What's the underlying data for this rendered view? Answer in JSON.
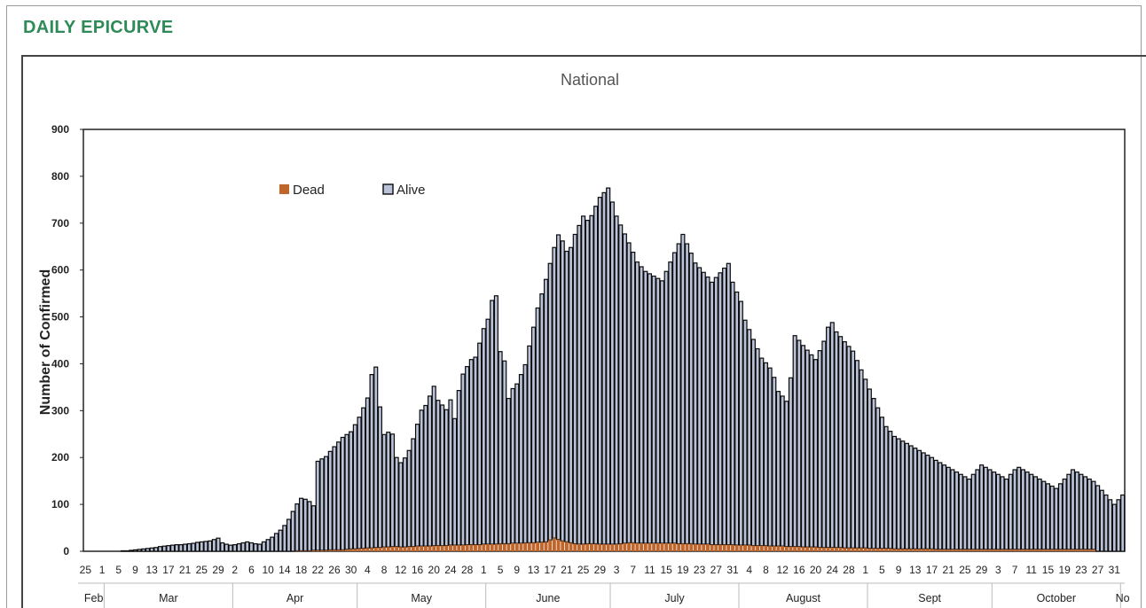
{
  "heading": "DAILY EPICURVE",
  "colors": {
    "heading": "#2e8b57",
    "alive_fill": "#b9c2d6",
    "alive_dark": "#0a0a0a",
    "dead": "#c0662b"
  },
  "chart_data": {
    "type": "bar",
    "stacked": true,
    "title": "National",
    "ylabel": "Number of Confirmed",
    "ylim": [
      0,
      900
    ],
    "yticks": [
      0,
      100,
      200,
      300,
      400,
      500,
      600,
      700,
      800,
      900
    ],
    "legend": {
      "position": "top-left",
      "entries": [
        "Dead",
        "Alive"
      ]
    },
    "x_tick_labels": [
      "25",
      "1",
      "5",
      "9",
      "13",
      "17",
      "21",
      "25",
      "29",
      "2",
      "6",
      "10",
      "14",
      "18",
      "22",
      "26",
      "30",
      "4",
      "8",
      "12",
      "16",
      "20",
      "24",
      "28",
      "1",
      "5",
      "9",
      "13",
      "17",
      "21",
      "25",
      "29",
      "3",
      "7",
      "11",
      "15",
      "19",
      "23",
      "27",
      "31",
      "4",
      "8",
      "12",
      "16",
      "20",
      "24",
      "28",
      "1",
      "5",
      "9",
      "13",
      "17",
      "21",
      "25",
      "29",
      "3",
      "7",
      "11",
      "15",
      "19",
      "23",
      "27",
      "31"
    ],
    "x_tick_start": "2020-02-25",
    "x_tick_step_days": 4,
    "months": [
      "Feb",
      "Mar",
      "Apr",
      "May",
      "June",
      "July",
      "August",
      "Sept",
      "October",
      "No"
    ],
    "month_spans": [
      {
        "label": "Feb",
        "start": "2020-02-25",
        "end": "2020-02-29"
      },
      {
        "label": "Mar",
        "start": "2020-03-01",
        "end": "2020-03-31"
      },
      {
        "label": "Apr",
        "start": "2020-04-01",
        "end": "2020-04-30"
      },
      {
        "label": "May",
        "start": "2020-05-01",
        "end": "2020-05-31"
      },
      {
        "label": "June",
        "start": "2020-06-01",
        "end": "2020-06-30"
      },
      {
        "label": "July",
        "start": "2020-07-01",
        "end": "2020-07-31"
      },
      {
        "label": "August",
        "start": "2020-08-01",
        "end": "2020-08-31"
      },
      {
        "label": "Sept",
        "start": "2020-09-01",
        "end": "2020-09-30"
      },
      {
        "label": "October",
        "start": "2020-10-01",
        "end": "2020-10-31"
      },
      {
        "label": "No",
        "start": "2020-11-01",
        "end": "2020-11-01"
      }
    ],
    "series": [
      {
        "name": "Dead",
        "color": "#c0662b",
        "values": [
          0,
          0,
          0,
          0,
          0,
          0,
          0,
          0,
          0,
          0,
          0,
          0,
          0,
          0,
          0,
          0,
          0,
          0,
          0,
          0,
          0,
          0,
          0,
          0,
          0,
          0,
          0,
          0,
          0,
          0,
          0,
          0,
          0,
          0,
          0,
          0,
          0,
          0,
          0,
          0,
          0,
          0,
          0,
          0,
          0,
          0,
          0,
          0,
          0,
          0,
          0,
          1,
          1,
          1,
          1,
          2,
          2,
          2,
          2,
          3,
          3,
          3,
          3,
          4,
          5,
          5,
          6,
          6,
          7,
          7,
          8,
          8,
          9,
          9,
          10,
          10,
          9,
          9,
          10,
          10,
          11,
          11,
          11,
          11,
          12,
          12,
          12,
          12,
          13,
          13,
          13,
          13,
          14,
          14,
          14,
          14,
          15,
          15,
          15,
          15,
          16,
          16,
          16,
          17,
          17,
          17,
          18,
          18,
          18,
          19,
          19,
          20,
          24,
          28,
          25,
          22,
          20,
          18,
          16,
          15,
          15,
          16,
          16,
          16,
          15,
          15,
          15,
          15,
          15,
          16,
          17,
          18,
          18,
          17,
          17,
          17,
          17,
          17,
          17,
          17,
          17,
          17,
          17,
          16,
          16,
          16,
          16,
          15,
          15,
          15,
          15,
          14,
          14,
          14,
          14,
          14,
          14,
          13,
          13,
          13,
          13,
          12,
          12,
          12,
          12,
          11,
          11,
          11,
          11,
          10,
          10,
          10,
          10,
          9,
          9,
          9,
          9,
          8,
          8,
          8,
          8,
          8,
          8,
          7,
          7,
          7,
          7,
          7,
          7,
          6,
          6,
          6,
          6,
          6,
          6,
          5,
          5,
          5,
          5,
          5,
          5,
          5,
          5,
          5,
          5,
          4,
          4,
          4,
          4,
          4,
          4,
          4,
          4,
          4,
          4,
          4,
          4,
          4,
          4,
          4,
          4,
          4,
          4,
          4,
          4,
          4,
          4,
          4,
          4,
          4,
          4,
          4,
          4,
          4,
          4,
          4,
          4,
          4,
          4,
          4,
          4,
          4,
          4,
          4
        ]
      },
      {
        "name": "Alive",
        "color": "#b9c2d6",
        "values": [
          0,
          0,
          0,
          0,
          0,
          0,
          0,
          0,
          0,
          1,
          1,
          2,
          3,
          4,
          5,
          6,
          7,
          8,
          10,
          11,
          12,
          13,
          14,
          14,
          15,
          16,
          17,
          19,
          20,
          21,
          22,
          25,
          28,
          18,
          15,
          13,
          14,
          16,
          18,
          20,
          18,
          16,
          15,
          20,
          25,
          30,
          38,
          45,
          55,
          68,
          85,
          100,
          112,
          110,
          105,
          95,
          190,
          195,
          200,
          210,
          220,
          230,
          240,
          245,
          250,
          265,
          280,
          300,
          320,
          370,
          385,
          300,
          240,
          245,
          240,
          190,
          180,
          190,
          205,
          230,
          260,
          290,
          300,
          320,
          340,
          310,
          300,
          290,
          310,
          270,
          330,
          365,
          380,
          395,
          400,
          430,
          460,
          480,
          520,
          530,
          410,
          390,
          310,
          330,
          340,
          360,
          380,
          420,
          460,
          500,
          530,
          560,
          590,
          620,
          650,
          640,
          620,
          630,
          660,
          680,
          700,
          690,
          700,
          720,
          740,
          750,
          760,
          730,
          700,
          680,
          660,
          640,
          620,
          600,
          590,
          580,
          575,
          570,
          565,
          560,
          580,
          600,
          620,
          640,
          660,
          640,
          620,
          600,
          590,
          580,
          570,
          560,
          570,
          580,
          590,
          600,
          560,
          540,
          520,
          480,
          460,
          440,
          420,
          400,
          390,
          380,
          360,
          330,
          320,
          310,
          360,
          450,
          440,
          430,
          420,
          410,
          400,
          420,
          440,
          470,
          480,
          460,
          450,
          440,
          430,
          420,
          400,
          380,
          360,
          340,
          320,
          300,
          280,
          260,
          250,
          240,
          235,
          230,
          225,
          220,
          215,
          210,
          205,
          200,
          195,
          190,
          185,
          180,
          175,
          170,
          165,
          160,
          155,
          150,
          160,
          170,
          180,
          175,
          170,
          165,
          160,
          155,
          150,
          160,
          170,
          175,
          170,
          165,
          160,
          155,
          150,
          145,
          140,
          135,
          130,
          140,
          150,
          160,
          170,
          165,
          160,
          155,
          150,
          145,
          140,
          130,
          120,
          110,
          100,
          110,
          120,
          130,
          140,
          150,
          160,
          150,
          140,
          130
        ]
      }
    ]
  }
}
